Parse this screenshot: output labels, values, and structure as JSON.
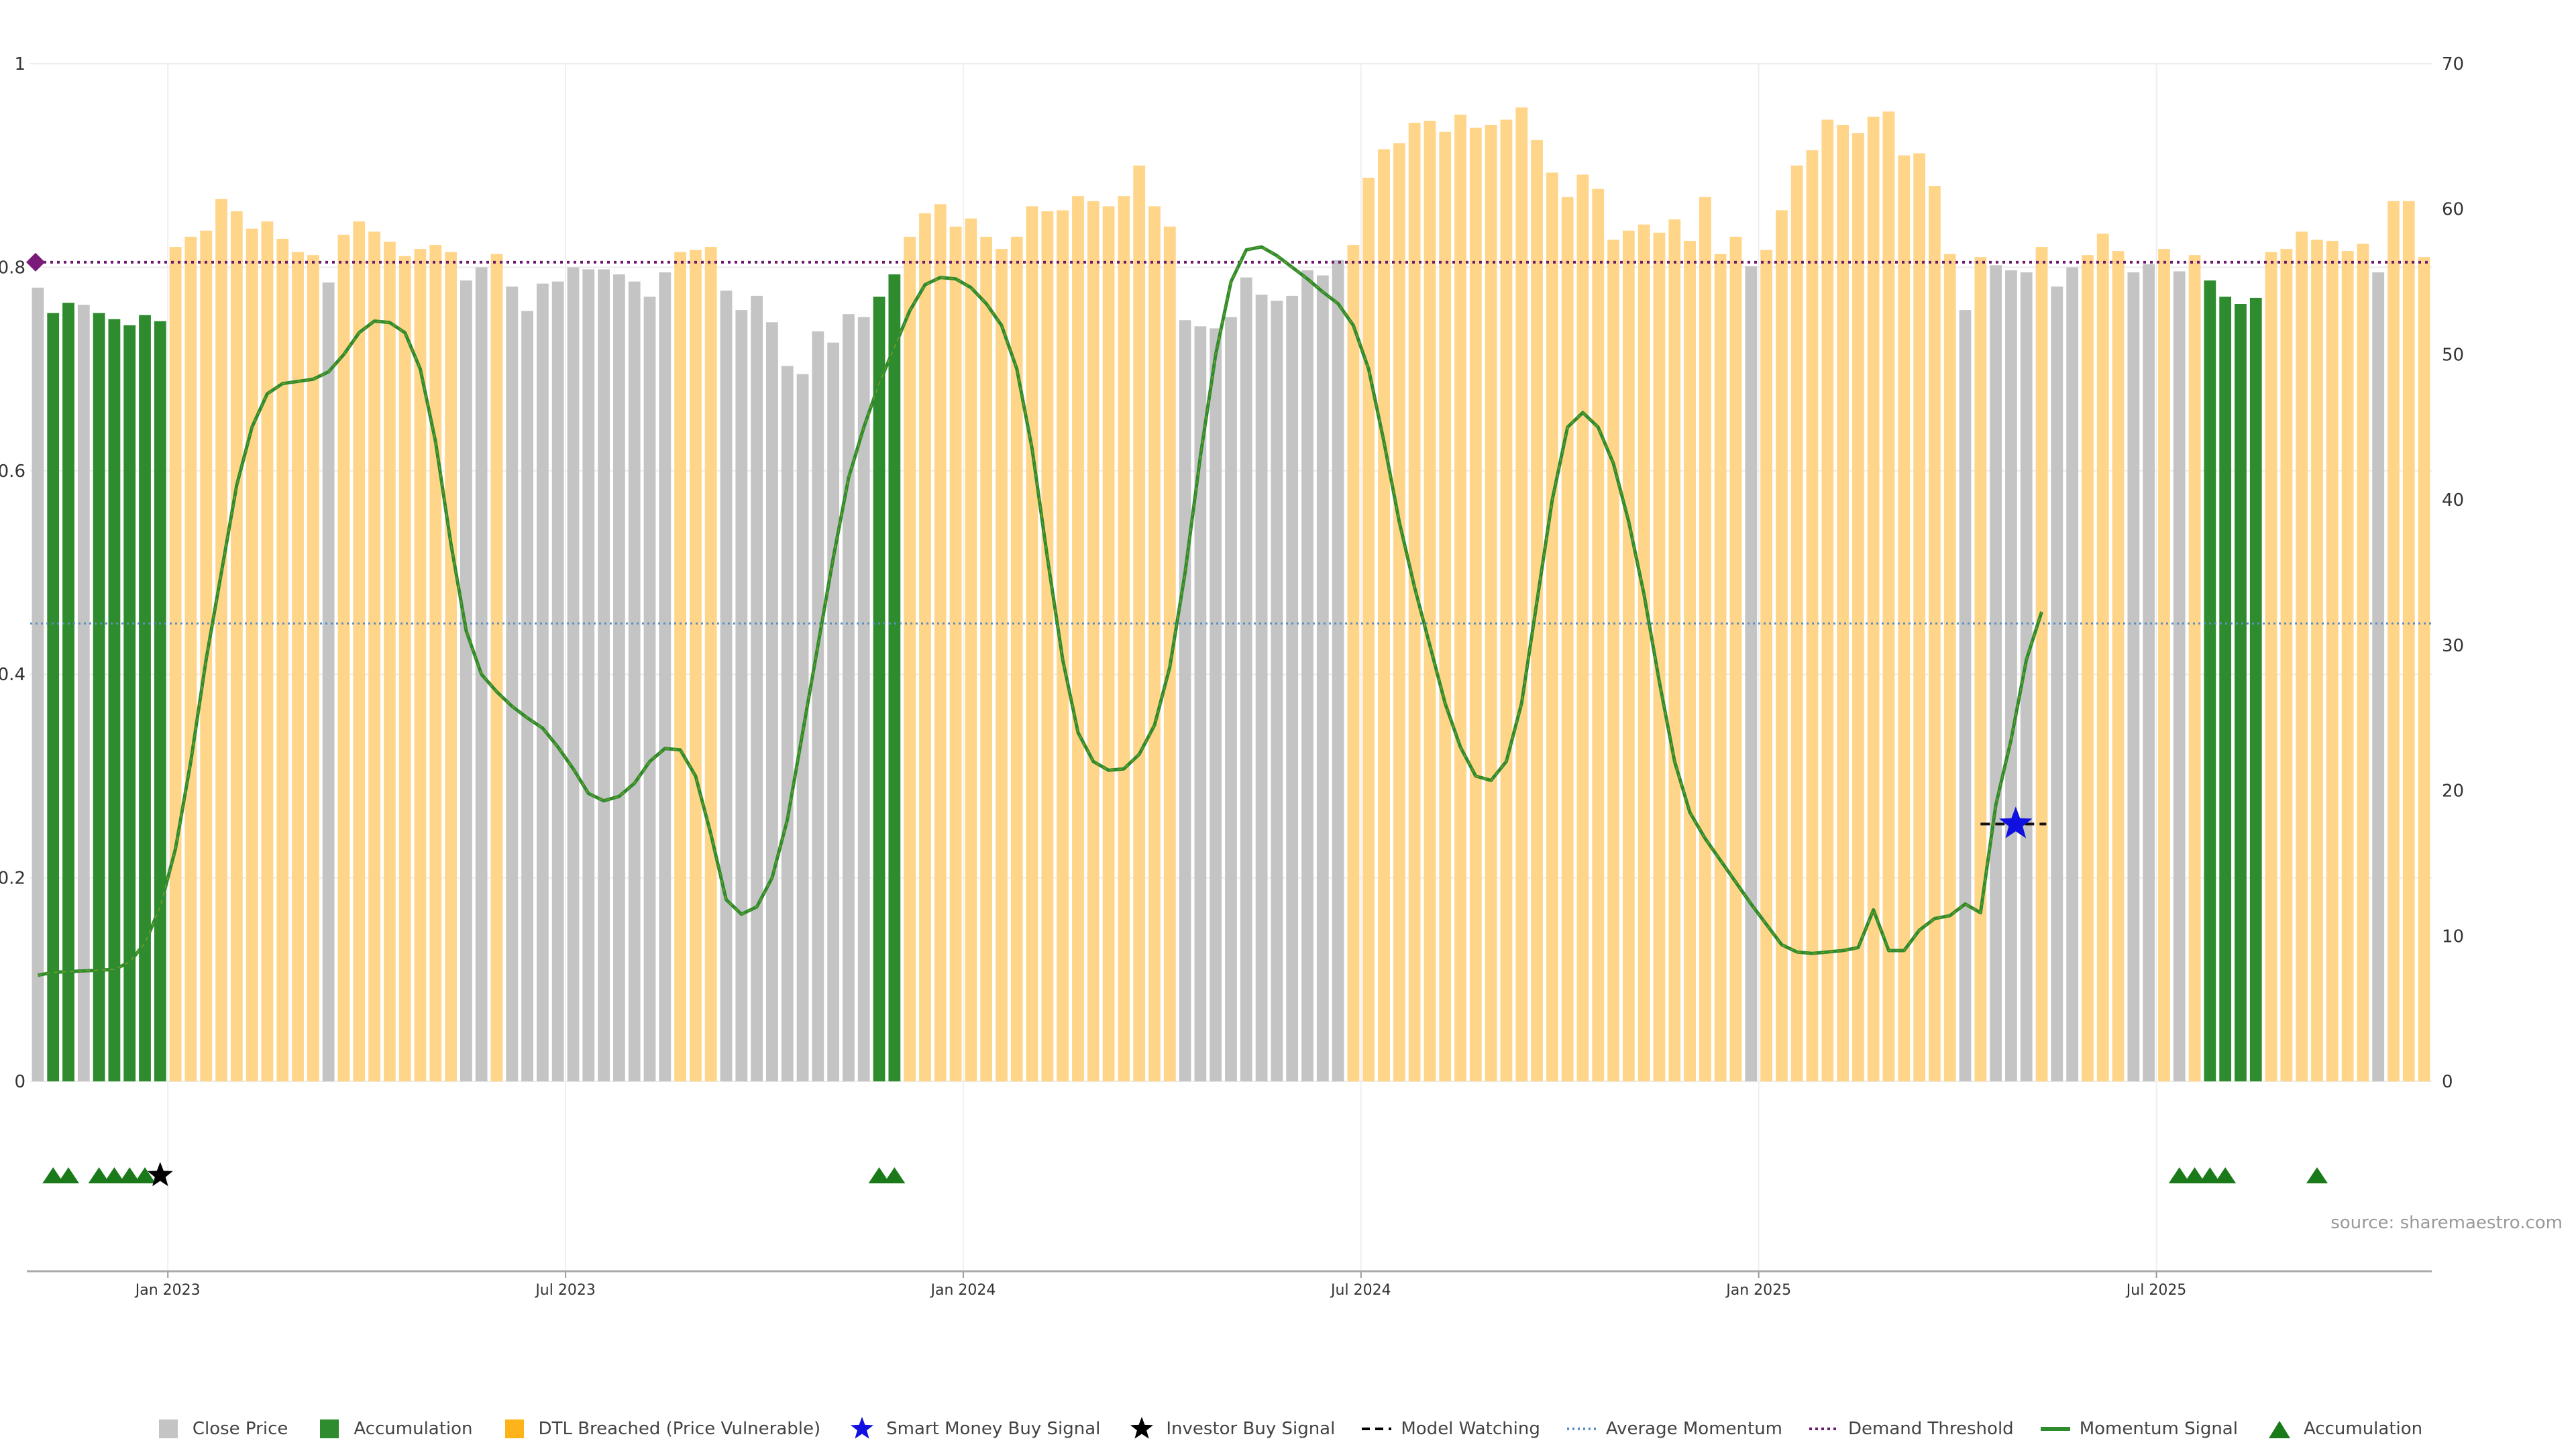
{
  "chart_data": {
    "type": "bar",
    "title": "",
    "left_axis": {
      "ylim": [
        0,
        1
      ],
      "ticks": [
        "0",
        "0.2",
        "0.4",
        "0.6",
        "0.8",
        "1"
      ]
    },
    "right_axis": {
      "ylim": [
        0,
        70
      ],
      "ticks": [
        "0",
        "10",
        "20",
        "30",
        "40",
        "50",
        "60",
        "70"
      ]
    },
    "x_ticks": [
      "Jan 2023",
      "Jul 2023",
      "Jan 2024",
      "Jul 2024",
      "Jan 2025",
      "Jul 2025"
    ],
    "x_tick_weeks": [
      9,
      35,
      61,
      87,
      113,
      139
    ],
    "bar_categories": {
      "c": "Close Price",
      "a": "Accumulation",
      "d": "DTL Breached (Price Vulnerable)"
    },
    "bar_colors": {
      "c": "#c4c4c4",
      "a": "#2e8b2e",
      "d": "#ffd58a"
    },
    "bars": [
      {
        "v": 0.78,
        "k": "c"
      },
      {
        "v": 0.755,
        "k": "a"
      },
      {
        "v": 0.765,
        "k": "a"
      },
      {
        "v": 0.763,
        "k": "c"
      },
      {
        "v": 0.755,
        "k": "a"
      },
      {
        "v": 0.749,
        "k": "a"
      },
      {
        "v": 0.743,
        "k": "a"
      },
      {
        "v": 0.753,
        "k": "a"
      },
      {
        "v": 0.747,
        "k": "a"
      },
      {
        "v": 0.82,
        "k": "d"
      },
      {
        "v": 0.83,
        "k": "d"
      },
      {
        "v": 0.836,
        "k": "d"
      },
      {
        "v": 0.867,
        "k": "d"
      },
      {
        "v": 0.855,
        "k": "d"
      },
      {
        "v": 0.838,
        "k": "d"
      },
      {
        "v": 0.845,
        "k": "d"
      },
      {
        "v": 0.828,
        "k": "d"
      },
      {
        "v": 0.815,
        "k": "d"
      },
      {
        "v": 0.812,
        "k": "d"
      },
      {
        "v": 0.785,
        "k": "c"
      },
      {
        "v": 0.832,
        "k": "d"
      },
      {
        "v": 0.845,
        "k": "d"
      },
      {
        "v": 0.835,
        "k": "d"
      },
      {
        "v": 0.825,
        "k": "d"
      },
      {
        "v": 0.811,
        "k": "d"
      },
      {
        "v": 0.818,
        "k": "d"
      },
      {
        "v": 0.822,
        "k": "d"
      },
      {
        "v": 0.815,
        "k": "d"
      },
      {
        "v": 0.787,
        "k": "c"
      },
      {
        "v": 0.8,
        "k": "c"
      },
      {
        "v": 0.813,
        "k": "d"
      },
      {
        "v": 0.781,
        "k": "c"
      },
      {
        "v": 0.757,
        "k": "c"
      },
      {
        "v": 0.784,
        "k": "c"
      },
      {
        "v": 0.786,
        "k": "c"
      },
      {
        "v": 0.8,
        "k": "c"
      },
      {
        "v": 0.798,
        "k": "c"
      },
      {
        "v": 0.798,
        "k": "c"
      },
      {
        "v": 0.793,
        "k": "c"
      },
      {
        "v": 0.786,
        "k": "c"
      },
      {
        "v": 0.771,
        "k": "c"
      },
      {
        "v": 0.795,
        "k": "c"
      },
      {
        "v": 0.815,
        "k": "d"
      },
      {
        "v": 0.817,
        "k": "d"
      },
      {
        "v": 0.82,
        "k": "d"
      },
      {
        "v": 0.777,
        "k": "c"
      },
      {
        "v": 0.758,
        "k": "c"
      },
      {
        "v": 0.772,
        "k": "c"
      },
      {
        "v": 0.746,
        "k": "c"
      },
      {
        "v": 0.703,
        "k": "c"
      },
      {
        "v": 0.695,
        "k": "c"
      },
      {
        "v": 0.737,
        "k": "c"
      },
      {
        "v": 0.726,
        "k": "c"
      },
      {
        "v": 0.754,
        "k": "c"
      },
      {
        "v": 0.751,
        "k": "c"
      },
      {
        "v": 0.771,
        "k": "a"
      },
      {
        "v": 0.793,
        "k": "a"
      },
      {
        "v": 0.83,
        "k": "d"
      },
      {
        "v": 0.853,
        "k": "d"
      },
      {
        "v": 0.862,
        "k": "d"
      },
      {
        "v": 0.84,
        "k": "d"
      },
      {
        "v": 0.848,
        "k": "d"
      },
      {
        "v": 0.83,
        "k": "d"
      },
      {
        "v": 0.818,
        "k": "d"
      },
      {
        "v": 0.83,
        "k": "d"
      },
      {
        "v": 0.86,
        "k": "d"
      },
      {
        "v": 0.855,
        "k": "d"
      },
      {
        "v": 0.856,
        "k": "d"
      },
      {
        "v": 0.87,
        "k": "d"
      },
      {
        "v": 0.865,
        "k": "d"
      },
      {
        "v": 0.86,
        "k": "d"
      },
      {
        "v": 0.87,
        "k": "d"
      },
      {
        "v": 0.9,
        "k": "d"
      },
      {
        "v": 0.86,
        "k": "d"
      },
      {
        "v": 0.84,
        "k": "d"
      },
      {
        "v": 0.748,
        "k": "c"
      },
      {
        "v": 0.742,
        "k": "c"
      },
      {
        "v": 0.74,
        "k": "c"
      },
      {
        "v": 0.751,
        "k": "c"
      },
      {
        "v": 0.79,
        "k": "c"
      },
      {
        "v": 0.773,
        "k": "c"
      },
      {
        "v": 0.767,
        "k": "c"
      },
      {
        "v": 0.772,
        "k": "c"
      },
      {
        "v": 0.797,
        "k": "c"
      },
      {
        "v": 0.792,
        "k": "c"
      },
      {
        "v": 0.807,
        "k": "c"
      },
      {
        "v": 0.822,
        "k": "d"
      },
      {
        "v": 0.888,
        "k": "d"
      },
      {
        "v": 0.916,
        "k": "d"
      },
      {
        "v": 0.922,
        "k": "d"
      },
      {
        "v": 0.942,
        "k": "d"
      },
      {
        "v": 0.944,
        "k": "d"
      },
      {
        "v": 0.933,
        "k": "d"
      },
      {
        "v": 0.95,
        "k": "d"
      },
      {
        "v": 0.937,
        "k": "d"
      },
      {
        "v": 0.94,
        "k": "d"
      },
      {
        "v": 0.945,
        "k": "d"
      },
      {
        "v": 0.957,
        "k": "d"
      },
      {
        "v": 0.925,
        "k": "d"
      },
      {
        "v": 0.893,
        "k": "d"
      },
      {
        "v": 0.869,
        "k": "d"
      },
      {
        "v": 0.891,
        "k": "d"
      },
      {
        "v": 0.877,
        "k": "d"
      },
      {
        "v": 0.827,
        "k": "d"
      },
      {
        "v": 0.836,
        "k": "d"
      },
      {
        "v": 0.842,
        "k": "d"
      },
      {
        "v": 0.834,
        "k": "d"
      },
      {
        "v": 0.847,
        "k": "d"
      },
      {
        "v": 0.826,
        "k": "d"
      },
      {
        "v": 0.869,
        "k": "d"
      },
      {
        "v": 0.813,
        "k": "d"
      },
      {
        "v": 0.83,
        "k": "d"
      },
      {
        "v": 0.801,
        "k": "c"
      },
      {
        "v": 0.817,
        "k": "d"
      },
      {
        "v": 0.856,
        "k": "d"
      },
      {
        "v": 0.9,
        "k": "d"
      },
      {
        "v": 0.915,
        "k": "d"
      },
      {
        "v": 0.945,
        "k": "d"
      },
      {
        "v": 0.94,
        "k": "d"
      },
      {
        "v": 0.932,
        "k": "d"
      },
      {
        "v": 0.948,
        "k": "d"
      },
      {
        "v": 0.953,
        "k": "d"
      },
      {
        "v": 0.91,
        "k": "d"
      },
      {
        "v": 0.912,
        "k": "d"
      },
      {
        "v": 0.88,
        "k": "d"
      },
      {
        "v": 0.813,
        "k": "d"
      },
      {
        "v": 0.758,
        "k": "c"
      },
      {
        "v": 0.81,
        "k": "d"
      },
      {
        "v": 0.802,
        "k": "c"
      },
      {
        "v": 0.797,
        "k": "c"
      },
      {
        "v": 0.795,
        "k": "c"
      },
      {
        "v": 0.82,
        "k": "d"
      },
      {
        "v": 0.781,
        "k": "c"
      },
      {
        "v": 0.8,
        "k": "c"
      },
      {
        "v": 0.812,
        "k": "d"
      },
      {
        "v": 0.833,
        "k": "d"
      },
      {
        "v": 0.816,
        "k": "d"
      },
      {
        "v": 0.795,
        "k": "c"
      },
      {
        "v": 0.803,
        "k": "c"
      },
      {
        "v": 0.818,
        "k": "d"
      },
      {
        "v": 0.796,
        "k": "c"
      },
      {
        "v": 0.812,
        "k": "d"
      },
      {
        "v": 0.787,
        "k": "a"
      },
      {
        "v": 0.771,
        "k": "a"
      },
      {
        "v": 0.764,
        "k": "a"
      },
      {
        "v": 0.77,
        "k": "a"
      },
      {
        "v": 0.815,
        "k": "d"
      },
      {
        "v": 0.818,
        "k": "d"
      },
      {
        "v": 0.835,
        "k": "d"
      },
      {
        "v": 0.827,
        "k": "d"
      },
      {
        "v": 0.826,
        "k": "d"
      },
      {
        "v": 0.816,
        "k": "d"
      },
      {
        "v": 0.823,
        "k": "d"
      },
      {
        "v": 0.795,
        "k": "c"
      },
      {
        "v": 0.865,
        "k": "d"
      },
      {
        "v": 0.865,
        "k": "d"
      },
      {
        "v": 0.81,
        "k": "d"
      }
    ],
    "momentum_signal": [
      [
        0,
        7.3
      ],
      [
        1,
        7.5
      ],
      [
        3,
        7.6
      ],
      [
        5,
        7.7
      ],
      [
        6,
        8.2
      ],
      [
        7,
        9.5
      ],
      [
        8,
        12
      ],
      [
        9,
        16
      ],
      [
        10,
        22
      ],
      [
        11,
        29
      ],
      [
        12,
        35
      ],
      [
        13,
        41
      ],
      [
        14,
        45
      ],
      [
        15,
        47.3
      ],
      [
        16,
        48
      ],
      [
        18,
        48.3
      ],
      [
        19,
        48.8
      ],
      [
        20,
        50
      ],
      [
        21,
        51.5
      ],
      [
        22,
        52.3
      ],
      [
        23,
        52.2
      ],
      [
        24,
        51.5
      ],
      [
        25,
        49
      ],
      [
        26,
        44
      ],
      [
        27,
        37
      ],
      [
        28,
        31
      ],
      [
        29,
        28
      ],
      [
        30,
        26.8
      ],
      [
        31,
        25.8
      ],
      [
        32,
        25
      ],
      [
        33,
        24.3
      ],
      [
        34,
        23
      ],
      [
        35,
        21.5
      ],
      [
        36,
        19.8
      ],
      [
        37,
        19.3
      ],
      [
        38,
        19.6
      ],
      [
        39,
        20.5
      ],
      [
        40,
        22
      ],
      [
        41,
        22.9
      ],
      [
        42,
        22.8
      ],
      [
        43,
        21
      ],
      [
        44,
        17
      ],
      [
        45,
        12.5
      ],
      [
        46,
        11.5
      ],
      [
        47,
        12
      ],
      [
        48,
        14
      ],
      [
        49,
        18
      ],
      [
        50,
        24
      ],
      [
        51,
        30
      ],
      [
        52,
        36
      ],
      [
        53,
        41.5
      ],
      [
        54,
        45
      ],
      [
        55,
        48
      ],
      [
        56,
        50.5
      ],
      [
        57,
        53
      ],
      [
        58,
        54.8
      ],
      [
        59,
        55.3
      ],
      [
        60,
        55.2
      ],
      [
        61,
        54.6
      ],
      [
        62,
        53.5
      ],
      [
        63,
        52
      ],
      [
        64,
        49
      ],
      [
        65,
        43.5
      ],
      [
        66,
        36
      ],
      [
        67,
        29
      ],
      [
        68,
        24
      ],
      [
        69,
        22
      ],
      [
        70,
        21.4
      ],
      [
        71,
        21.5
      ],
      [
        72,
        22.5
      ],
      [
        73,
        24.5
      ],
      [
        74,
        28.5
      ],
      [
        75,
        35
      ],
      [
        76,
        43
      ],
      [
        77,
        50
      ],
      [
        78,
        55
      ],
      [
        79,
        57.2
      ],
      [
        80,
        57.4
      ],
      [
        81,
        56.8
      ],
      [
        82,
        56
      ],
      [
        83,
        55.2
      ],
      [
        84,
        54.3
      ],
      [
        85,
        53.5
      ],
      [
        86,
        52
      ],
      [
        87,
        49
      ],
      [
        88,
        44
      ],
      [
        89,
        38.5
      ],
      [
        90,
        34
      ],
      [
        91,
        30
      ],
      [
        92,
        26
      ],
      [
        93,
        23
      ],
      [
        94,
        21
      ],
      [
        95,
        20.7
      ],
      [
        96,
        22
      ],
      [
        97,
        26
      ],
      [
        98,
        33
      ],
      [
        99,
        40
      ],
      [
        100,
        45
      ],
      [
        101,
        46
      ],
      [
        102,
        45
      ],
      [
        103,
        42.5
      ],
      [
        104,
        38.5
      ],
      [
        105,
        33.5
      ],
      [
        106,
        27.5
      ],
      [
        107,
        22
      ],
      [
        108,
        18.5
      ],
      [
        109,
        16.7
      ],
      [
        110,
        15.2
      ],
      [
        111,
        13.7
      ],
      [
        112,
        12.2
      ],
      [
        113,
        10.8
      ],
      [
        114,
        9.4
      ],
      [
        115,
        8.9
      ],
      [
        116,
        8.8
      ],
      [
        117,
        8.9
      ],
      [
        118,
        9
      ],
      [
        119,
        9.2
      ],
      [
        120,
        11.8
      ],
      [
        121,
        9
      ],
      [
        122,
        9
      ],
      [
        123,
        10.4
      ],
      [
        124,
        11.2
      ],
      [
        125,
        11.4
      ],
      [
        126,
        12.2
      ],
      [
        127,
        11.6
      ],
      [
        128,
        19
      ],
      [
        129,
        23.5
      ],
      [
        130,
        29
      ],
      [
        131,
        32.3
      ]
    ],
    "average_momentum": 31.5,
    "demand_threshold": 0.805,
    "model_watching": {
      "y": 17.7,
      "x_start": 127,
      "x_end": 131.3
    },
    "smart_money_buy_signal": {
      "x": 129.3,
      "y": 17.7
    },
    "accumulation_markers": [
      1,
      2,
      4,
      5,
      6,
      7,
      55,
      56,
      140,
      141,
      142,
      143,
      149
    ],
    "investor_buy_markers": [
      8
    ],
    "legend": [
      {
        "label": "Close Price",
        "shape": "square",
        "color": "#c4c4c4"
      },
      {
        "label": "Accumulation",
        "shape": "square",
        "color": "#2e8b2e"
      },
      {
        "label": "DTL Breached (Price Vulnerable)",
        "shape": "square",
        "color": "#ffb31a"
      },
      {
        "label": "Smart Money Buy Signal",
        "shape": "star",
        "color": "#1010e0"
      },
      {
        "label": "Investor Buy Signal",
        "shape": "star",
        "color": "#000000"
      },
      {
        "label": "Model Watching",
        "shape": "dash",
        "color": "#000000"
      },
      {
        "label": "Average Momentum",
        "shape": "dot",
        "color": "#5b8fbf"
      },
      {
        "label": "Demand Threshold",
        "shape": "dotpurple",
        "color": "#6a1a6a"
      },
      {
        "label": "Momentum Signal",
        "shape": "line",
        "color": "#2e8b2e"
      },
      {
        "label": "Accumulation",
        "shape": "triangle",
        "color": "#1a7a1a"
      }
    ],
    "source": "source: sharemaestro.com"
  }
}
